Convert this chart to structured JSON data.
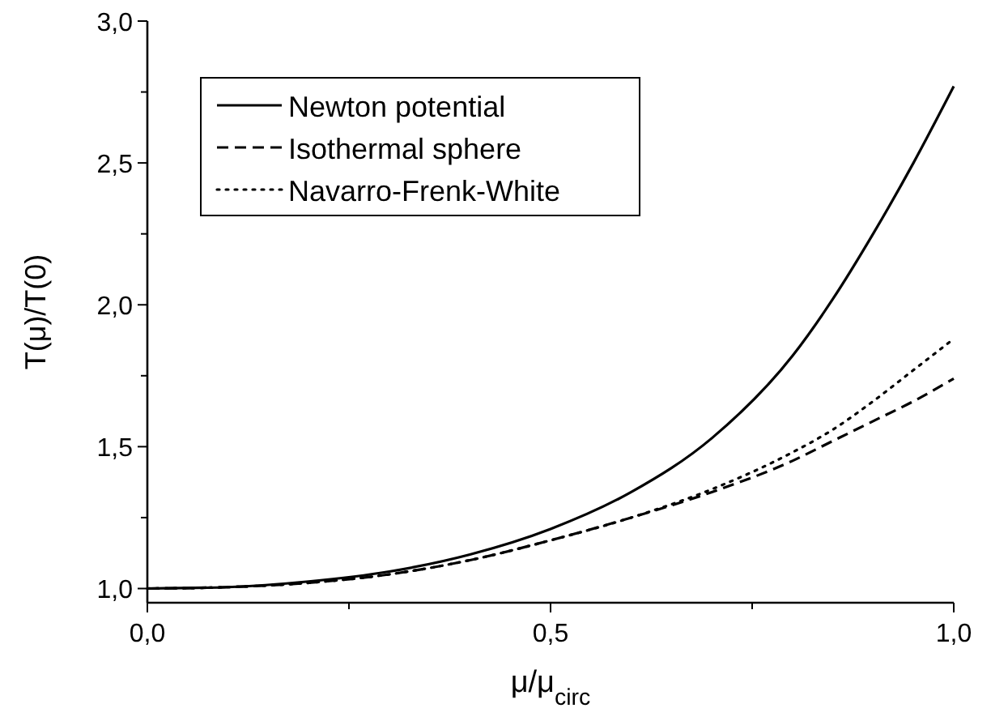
{
  "chart_data": {
    "type": "line",
    "xlabel": "μ/μ$_{circ}$",
    "ylabel": "T(μ)/T(0)",
    "x": [
      0,
      0.1,
      0.2,
      0.3,
      0.4,
      0.5,
      0.6,
      0.7,
      0.8,
      0.85,
      0.9,
      0.95,
      1.0
    ],
    "series": [
      {
        "name": "Newton potential",
        "color": "#000000",
        "line_style": "solid",
        "values": [
          1,
          1.005,
          1.025,
          1.06,
          1.12,
          1.21,
          1.34,
          1.53,
          1.82,
          2.02,
          2.25,
          2.5,
          2.77
        ]
      },
      {
        "name": "Isothermal sphere",
        "color": "#000000",
        "line_style": "dashed",
        "values": [
          1,
          1.005,
          1.02,
          1.05,
          1.1,
          1.17,
          1.25,
          1.34,
          1.45,
          1.52,
          1.59,
          1.66,
          1.74
        ]
      },
      {
        "name": "Navarro-Frenk-White",
        "color": "#000000",
        "line_style": "dotted",
        "values": [
          1,
          1.005,
          1.02,
          1.05,
          1.1,
          1.17,
          1.25,
          1.35,
          1.48,
          1.56,
          1.66,
          1.77,
          1.88
        ]
      }
    ],
    "xlim": [
      0,
      1
    ],
    "ylim": [
      0.95,
      3.0
    ],
    "xticks": [
      {
        "value": 0,
        "label": "0,0"
      },
      {
        "value": 0.25,
        "label": null
      },
      {
        "value": 0.5,
        "label": "0,5"
      },
      {
        "value": 0.75,
        "label": null
      },
      {
        "value": 1,
        "label": "1,0"
      }
    ],
    "yticks": [
      {
        "value": 1,
        "label": "1,0"
      },
      {
        "value": 1.25,
        "label": null
      },
      {
        "value": 1.5,
        "label": "1,5"
      },
      {
        "value": 1.75,
        "label": null
      },
      {
        "value": 2,
        "label": "2,0"
      },
      {
        "value": 2.25,
        "label": null
      },
      {
        "value": 2.5,
        "label": "2,5"
      },
      {
        "value": 2.75,
        "label": null
      },
      {
        "value": 3,
        "label": "3,0"
      }
    ],
    "grid": false,
    "legend": "top left"
  }
}
